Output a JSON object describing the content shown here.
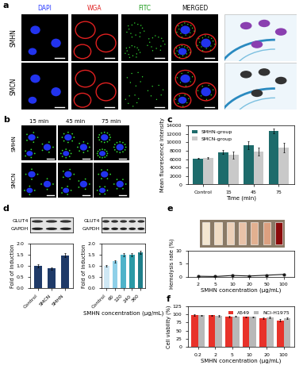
{
  "panels": {
    "a": {
      "label": "a",
      "rows": [
        "SMHN",
        "SMCN"
      ],
      "columns": [
        "DAPI",
        "WGA",
        "FITC",
        "MERGED"
      ],
      "column_colors": [
        "#2b3cff",
        "#e02020",
        "#1a9a1a",
        "#111111"
      ]
    },
    "b": {
      "label": "b",
      "rows": [
        "SMHN",
        "SMCN"
      ],
      "columns": [
        "15 min",
        "45 min",
        "75 min"
      ]
    }
  },
  "chart_data": [
    {
      "panel": "c",
      "type": "bar",
      "categories": [
        "Control",
        "15",
        "45",
        "75"
      ],
      "x_label": "Time (min)",
      "y_label": "Mean fluorescence intensity",
      "ylim": [
        0,
        14000
      ],
      "yticks": [
        0,
        2000,
        4000,
        6000,
        8000,
        10000,
        12000,
        14000
      ],
      "legend": "upper left",
      "series": [
        {
          "name": "SMHN-group",
          "color": "#1d6b6b",
          "values": [
            6200,
            7700,
            9300,
            12700
          ],
          "errors": [
            150,
            500,
            1000,
            600
          ]
        },
        {
          "name": "SMCN-group",
          "color": "#c9c9c9",
          "values": [
            6300,
            7000,
            7800,
            8700
          ],
          "errors": [
            150,
            800,
            900,
            1100
          ]
        }
      ]
    },
    {
      "panel": "d",
      "type": "bar",
      "blot_labels": [
        "GLUT4",
        "GAPDH"
      ],
      "categories": [
        "Control",
        "SMCN",
        "SMHN"
      ],
      "y_label": "Fold of induction",
      "ylim": [
        0,
        2.0
      ],
      "yticks": [
        {
          "value": 0,
          "label": "0.0"
        },
        0.5,
        {
          "value": 1,
          "label": "1.0"
        },
        1.5,
        {
          "value": 2,
          "label": "2.0"
        }
      ],
      "color": "#1f3a68",
      "values": [
        1.0,
        0.87,
        1.47
      ],
      "errors": [
        0.08,
        0.06,
        0.09
      ]
    },
    {
      "type": "bar",
      "blot_labels": [
        "GLUT4",
        "GAPDH"
      ],
      "categories": [
        "Control",
        "60",
        "120",
        "240",
        "360"
      ],
      "x_label": "SMHN concentration (μg/mL)",
      "y_label": "Fold of induction",
      "ylim": [
        0,
        2.0
      ],
      "yticks": [
        {
          "value": 0,
          "label": "0.0"
        },
        0.5,
        {
          "value": 1,
          "label": "1.0"
        },
        1.5,
        {
          "value": 2,
          "label": "2.0"
        }
      ],
      "colors": [
        "#cfe8f5",
        "#8fd0e8",
        "#4fb3c9",
        "#2a9aa6",
        "#1f7f8a"
      ],
      "values": [
        1.0,
        1.2,
        1.48,
        1.5,
        1.6
      ],
      "errors": [
        0.04,
        0.05,
        0.07,
        0.06,
        0.08
      ]
    },
    {
      "panel": "e",
      "type": "line",
      "categories": [
        "2",
        "5",
        "10",
        "20",
        "50",
        "100"
      ],
      "x_label": "SMHN concentration (μg/mL)",
      "y_label": "Hemolysis rate (%)",
      "ylim": [
        0,
        10
      ],
      "yticks": [
        0,
        5,
        10
      ],
      "color": "#1a1a1a",
      "marker": "o",
      "values": [
        0.2,
        0.1,
        0.5,
        0.3,
        0.6,
        0.9
      ]
    },
    {
      "panel": "f",
      "type": "bar",
      "categories": [
        "0.2",
        "2",
        "5",
        "10",
        "20",
        "100"
      ],
      "x_label": "SMHN concentration (μg/mL)",
      "y_label": "Cell viability (%)",
      "ylim": [
        0,
        125
      ],
      "yticks": [
        0,
        25,
        50,
        75,
        100,
        125
      ],
      "legend": "upper right",
      "series": [
        {
          "name": "A549",
          "color": "#e8322a",
          "values": [
            98,
            97,
            93,
            92,
            88,
            82
          ],
          "errors": [
            1.5,
            1.5,
            2,
            2,
            2.5,
            3
          ]
        },
        {
          "name": "NCI-H1975",
          "color": "#b8b8b8",
          "values": [
            97,
            96,
            94,
            92,
            90,
            88
          ],
          "errors": [
            1.5,
            2,
            2,
            2,
            2,
            2.5
          ]
        }
      ]
    }
  ]
}
